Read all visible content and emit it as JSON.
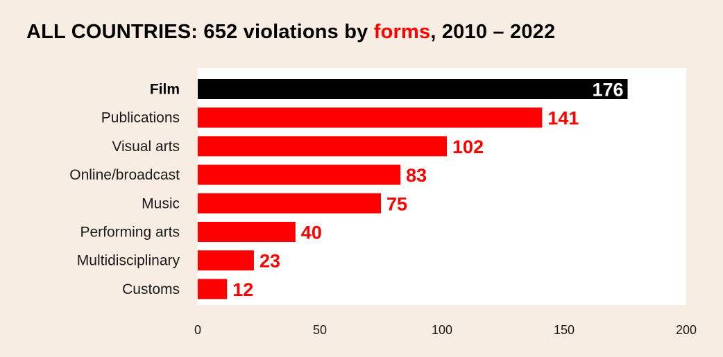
{
  "title": {
    "prefix": "ALL COUNTRIES: 652 violations by ",
    "highlight": "forms",
    "suffix": ", 2010 – 2022"
  },
  "colors": {
    "background": "#f8ede3",
    "plot_background": "#ffffff",
    "highlight_bar": "#000000",
    "bar": "#ff0000",
    "accent_text": "#ff0000"
  },
  "chart_data": {
    "type": "bar",
    "orientation": "horizontal",
    "categories": [
      "Film",
      "Publications",
      "Visual arts",
      "Online/broadcast",
      "Music",
      "Performing arts",
      "Multidisciplinary",
      "Customs"
    ],
    "values": [
      176,
      141,
      102,
      83,
      75,
      40,
      23,
      12
    ],
    "xlim": [
      0,
      200
    ],
    "xticks": [
      0,
      50,
      100,
      150,
      200
    ],
    "xlabel": "",
    "ylabel": "",
    "grid": false,
    "legend": "none"
  }
}
